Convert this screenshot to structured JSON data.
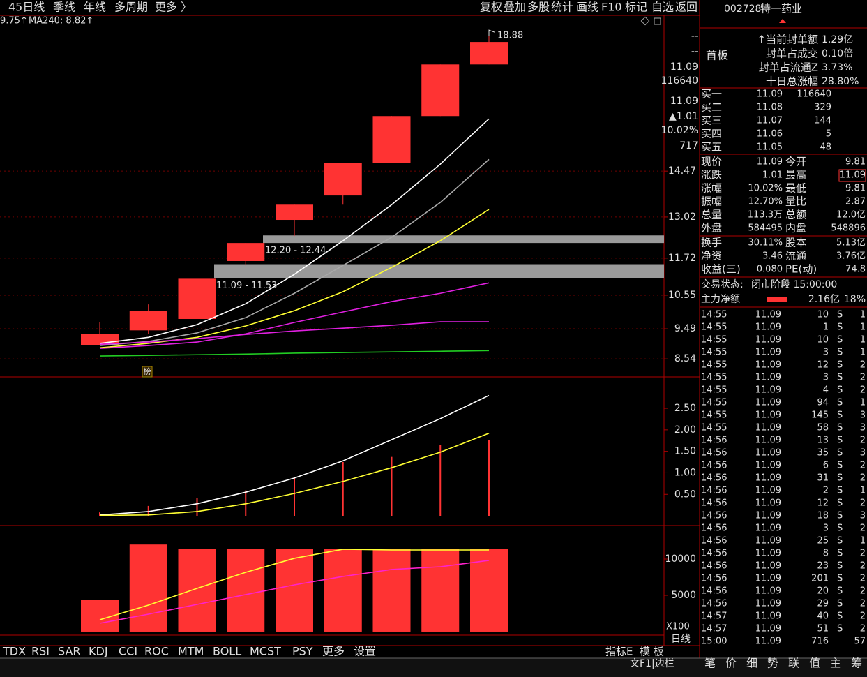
{
  "toolbar": {
    "left": [
      "45日线",
      "季线",
      "年线",
      "多周期",
      "更多 〉"
    ],
    "right": [
      "复权",
      "叠加",
      "多股",
      "统计",
      "画线",
      "F10",
      "标记",
      "自选",
      "返回"
    ]
  },
  "stock": {
    "code": "002728",
    "name": "特一药业"
  },
  "legend": [
    "9.75↑",
    "MA240: 8.82↑"
  ],
  "chart_data": [
    {
      "type": "candlestick",
      "open": [
        8.98,
        9.44,
        9.8,
        11.63,
        12.93,
        13.7,
        14.73,
        16.21,
        17.84
      ],
      "close": [
        9.33,
        10.06,
        11.07,
        12.2,
        13.41,
        14.73,
        16.21,
        17.84,
        18.55
      ],
      "high": [
        9.71,
        10.26,
        11.07,
        12.2,
        13.41,
        14.73,
        16.21,
        17.84,
        18.88
      ],
      "low": [
        8.98,
        9.33,
        9.51,
        11.49,
        12.42,
        13.41,
        14.73,
        16.21,
        17.84
      ],
      "ylim": [
        7.97,
        19.39
      ],
      "yticks": [
        8.54,
        9.49,
        10.55,
        11.72,
        13.02,
        14.47
      ],
      "grid": true,
      "up_color": "#ff3333",
      "series": [
        {
          "color": "#ffffff",
          "values": [
            9.03,
            9.22,
            9.62,
            10.28,
            11.21,
            12.27,
            13.41,
            14.69,
            16.12
          ]
        },
        {
          "color": "#a8a8a8",
          "values": [
            8.96,
            9.09,
            9.36,
            9.84,
            10.61,
            11.49,
            12.38,
            13.48,
            14.84
          ]
        },
        {
          "color": "#ffff33",
          "values": [
            8.89,
            9.03,
            9.22,
            9.58,
            10.06,
            10.66,
            11.43,
            12.27,
            13.26
          ]
        },
        {
          "color": "#e020e0",
          "values": [
            8.87,
            8.96,
            9.07,
            9.33,
            9.69,
            10.02,
            10.35,
            10.61,
            10.94
          ]
        },
        {
          "color": "#e020e0",
          "values": [
            9.0,
            9.07,
            9.18,
            9.31,
            9.42,
            9.51,
            9.6,
            9.71,
            9.71
          ]
        },
        {
          "color": "#22cc22",
          "values": [
            8.63,
            8.65,
            8.67,
            8.69,
            8.72,
            8.74,
            8.76,
            8.78,
            8.8
          ]
        }
      ],
      "zones": [
        {
          "low": 11.09,
          "high": 11.53,
          "label": "11.09 - 11.53"
        },
        {
          "low": 12.2,
          "high": 12.44,
          "label": "12.20 - 12.44"
        }
      ],
      "marker": "榜"
    },
    {
      "type": "stem",
      "values": [
        0.08,
        0.23,
        0.41,
        0.59,
        0.88,
        1.25,
        1.37,
        1.64,
        1.77
      ],
      "color": "#ff3333",
      "ylim": [
        -0.21,
        3.15
      ],
      "yticks": [
        {
          "value": 0.5,
          "label": "0.50"
        },
        {
          "value": 1,
          "label": "1.00"
        },
        {
          "value": 1.5,
          "label": "1.50"
        },
        {
          "value": 2,
          "label": "2.00"
        },
        {
          "value": 2.5,
          "label": "2.50"
        }
      ],
      "series": [
        {
          "color": "#ffffff",
          "values": [
            0.02,
            0.1,
            0.28,
            0.55,
            0.88,
            1.28,
            1.77,
            2.26,
            2.8
          ]
        },
        {
          "color": "#ffff33",
          "values": [
            0.01,
            0.02,
            0.1,
            0.28,
            0.52,
            0.8,
            1.12,
            1.48,
            1.92
          ]
        }
      ]
    },
    {
      "type": "bar",
      "values": [
        4420,
        12000,
        11350,
        11350,
        11350,
        11350,
        11350,
        11350,
        11350
      ],
      "color": "#ff3333",
      "ylim": [
        -290,
        14230
      ],
      "yticks": [
        5000,
        10000
      ],
      "series": [
        {
          "color": "#ffff33",
          "values": [
            1630,
            3650,
            5960,
            8170,
            10100,
            11350,
            11250,
            11250,
            11250
          ]
        },
        {
          "color": "#ff22cc",
          "values": [
            1150,
            2400,
            3750,
            5100,
            6440,
            7600,
            8560,
            8940,
            9810
          ]
        }
      ]
    }
  ],
  "price_column": [
    {
      "text": "--",
      "color": "#ffffff"
    },
    {
      "text": "--",
      "color": "#ffffff"
    },
    {
      "text": "11.09",
      "color": "#ffffff"
    },
    {
      "text": "116640",
      "color": "#ffff33"
    },
    {
      "text": "11.09",
      "color": "#ff3333"
    },
    {
      "text": "▲1.01",
      "color": "#ff3333"
    },
    {
      "text": "10.02%",
      "color": "#ff3333"
    },
    {
      "text": "717",
      "color": "#ffffff"
    }
  ],
  "seal": {
    "tag": "首板",
    "rows": [
      {
        "label": "↑当前封单额",
        "value": "1.29亿",
        "color": "#ffff33"
      },
      {
        "label": "封单占成交",
        "value": "0.10倍",
        "color": "#33ccff"
      },
      {
        "label": "封单占流通Z",
        "value": "3.73%",
        "color": "#33ccff"
      },
      {
        "label": "十日总涨幅",
        "value": "28.80%",
        "color": "#ff3333"
      }
    ]
  },
  "order_book": [
    {
      "label": "买一",
      "price": "11.09",
      "volume": "116640"
    },
    {
      "label": "买二",
      "price": "11.08",
      "volume": "329"
    },
    {
      "label": "买三",
      "price": "11.07",
      "volume": "144"
    },
    {
      "label": "买四",
      "price": "11.06",
      "volume": "5"
    },
    {
      "label": "买五",
      "price": "11.05",
      "volume": "48"
    }
  ],
  "stats": [
    [
      {
        "label": "现价",
        "value": "11.09",
        "color": "#ff3333"
      },
      {
        "label": "今开",
        "value": "9.81",
        "color": "#ff3333"
      }
    ],
    [
      {
        "label": "涨跌",
        "value": "1.01",
        "color": "#ff3333"
      },
      {
        "label": "最高",
        "value": "11.09",
        "color": "#ff3333"
      }
    ],
    [
      {
        "label": "涨幅",
        "value": "10.02%",
        "color": "#ff3333"
      },
      {
        "label": "最低",
        "value": "9.81",
        "color": "#ff3333"
      }
    ],
    [
      {
        "label": "振幅",
        "value": "12.70%",
        "color": "#e0e0e0"
      },
      {
        "label": "量比",
        "value": "2.87",
        "color": "#ff3333"
      }
    ],
    [
      {
        "label": "总量",
        "value": "113.3万",
        "color": "#ffff33"
      },
      {
        "label": "总额",
        "value": "12.0亿",
        "color": "#ff33ff"
      }
    ],
    [
      {
        "label": "外盘",
        "value": "584495",
        "color": "#ff3333"
      },
      {
        "label": "内盘",
        "value": "548896",
        "color": "#33ff33"
      }
    ],
    [
      {
        "label": "换手",
        "value": "30.11%",
        "color": "#e0e0e0"
      },
      {
        "label": "股本",
        "value": "5.13亿",
        "color": "#e0e0e0"
      }
    ],
    [
      {
        "label": "净资",
        "value": "3.46",
        "color": "#e0e0e0"
      },
      {
        "label": "流通",
        "value": "3.76亿",
        "color": "#e0e0e0"
      }
    ],
    [
      {
        "label": "收益(三)",
        "value": "0.080",
        "color": "#e0e0e0"
      },
      {
        "label": "PE(动)",
        "value": "74.8",
        "color": "#e0e0e0"
      }
    ]
  ],
  "status": {
    "label": "交易状态:",
    "value": "闭市阶段 15:00:00"
  },
  "main_force": {
    "label": "主力净额",
    "value": "2.16亿",
    "percent": "18%"
  },
  "trades": [
    [
      "14:55",
      "11.09",
      "10",
      "S",
      "1"
    ],
    [
      "14:55",
      "11.09",
      "1",
      "S",
      "1"
    ],
    [
      "14:55",
      "11.09",
      "10",
      "S",
      "1"
    ],
    [
      "14:55",
      "11.09",
      "3",
      "S",
      "1"
    ],
    [
      "14:55",
      "11.09",
      "12",
      "S",
      "2"
    ],
    [
      "14:55",
      "11.09",
      "3",
      "S",
      "2"
    ],
    [
      "14:55",
      "11.09",
      "4",
      "S",
      "2"
    ],
    [
      "14:55",
      "11.09",
      "94",
      "S",
      "1"
    ],
    [
      "14:55",
      "11.09",
      "145",
      "S",
      "3"
    ],
    [
      "14:55",
      "11.09",
      "58",
      "S",
      "3"
    ],
    [
      "14:56",
      "11.09",
      "13",
      "S",
      "2"
    ],
    [
      "14:56",
      "11.09",
      "35",
      "S",
      "3"
    ],
    [
      "14:56",
      "11.09",
      "6",
      "S",
      "2"
    ],
    [
      "14:56",
      "11.09",
      "31",
      "S",
      "2"
    ],
    [
      "14:56",
      "11.09",
      "2",
      "S",
      "1"
    ],
    [
      "14:56",
      "11.09",
      "12",
      "S",
      "2"
    ],
    [
      "14:56",
      "11.09",
      "18",
      "S",
      "3"
    ],
    [
      "14:56",
      "11.09",
      "3",
      "S",
      "2"
    ],
    [
      "14:56",
      "11.09",
      "25",
      "S",
      "1"
    ],
    [
      "14:56",
      "11.09",
      "8",
      "S",
      "2"
    ],
    [
      "14:56",
      "11.09",
      "23",
      "S",
      "2"
    ],
    [
      "14:56",
      "11.09",
      "201",
      "S",
      "2"
    ],
    [
      "14:56",
      "11.09",
      "20",
      "S",
      "2"
    ],
    [
      "14:56",
      "11.09",
      "29",
      "S",
      "2"
    ],
    [
      "14:57",
      "11.09",
      "40",
      "S",
      "2"
    ],
    [
      "14:57",
      "11.09",
      "51",
      "S",
      "2"
    ],
    [
      "15:00",
      "11.09",
      "716",
      "",
      "57"
    ]
  ],
  "indicator_tabs": [
    "TDX",
    "RSI",
    "SAR",
    "KDJ",
    "CCI",
    "ROC",
    "MTM",
    "BOLL",
    "MCST",
    "PSY",
    "更多",
    "设置"
  ],
  "template_tabs": [
    "指标E",
    "模 板"
  ],
  "axis_notes": [
    "X100",
    "日线"
  ],
  "panel_tabs": [
    "笔",
    "价",
    "细",
    "势",
    "联",
    "值",
    "主",
    "筹"
  ],
  "footer_tab": "文F1|边栏"
}
